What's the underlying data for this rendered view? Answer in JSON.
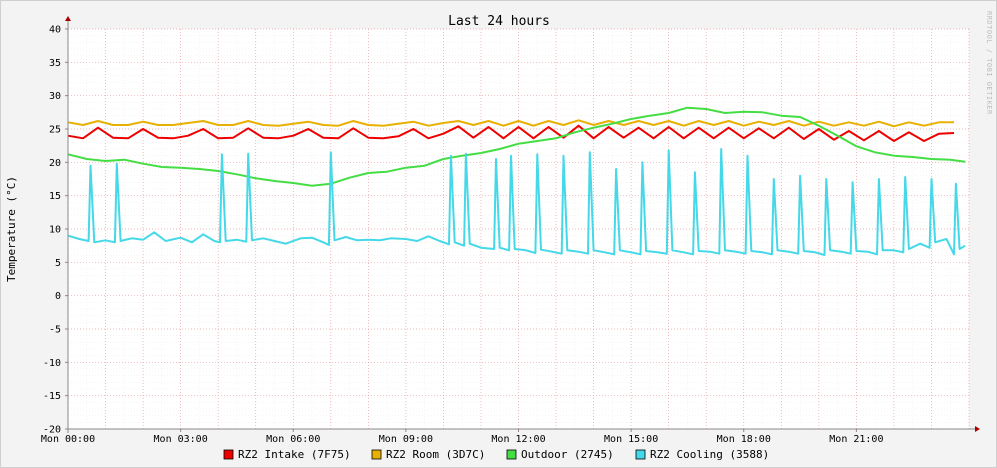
{
  "watermark": "RRDTOOL / TOBI OETIKER",
  "chart_data": {
    "type": "line",
    "title": "Last 24 hours",
    "xlabel": "",
    "ylabel": "Temperature (°C)",
    "xlim": [
      0,
      24
    ],
    "ylim": [
      -20,
      40
    ],
    "y_ticks": [
      40,
      35,
      30,
      25,
      20,
      15,
      10,
      5,
      0,
      -5,
      -10,
      -15,
      -20
    ],
    "x_ticks": [
      {
        "value": 0,
        "label": "Mon 00:00"
      },
      {
        "value": 3,
        "label": "Mon 03:00"
      },
      {
        "value": 6,
        "label": "Mon 06:00"
      },
      {
        "value": 9,
        "label": "Mon 09:00"
      },
      {
        "value": 12,
        "label": "Mon 12:00"
      },
      {
        "value": 15,
        "label": "Mon 15:00"
      },
      {
        "value": 18,
        "label": "Mon 18:00"
      },
      {
        "value": 21,
        "label": "Mon 21:00"
      }
    ],
    "grid": true,
    "legend_position": "bottom",
    "series": [
      {
        "name": "RZ2 Intake (7F75)",
        "color": "#ee0000",
        "x": [
          0,
          0.4,
          0.8,
          1.2,
          1.6,
          2.0,
          2.4,
          2.8,
          3.2,
          3.6,
          4.0,
          4.4,
          4.8,
          5.2,
          5.6,
          6.0,
          6.4,
          6.8,
          7.2,
          7.6,
          8.0,
          8.4,
          8.8,
          9.2,
          9.6,
          10.0,
          10.4,
          10.8,
          11.2,
          11.6,
          12.0,
          12.4,
          12.8,
          13.2,
          13.6,
          14.0,
          14.4,
          14.8,
          15.2,
          15.6,
          16.0,
          16.4,
          16.8,
          17.2,
          17.6,
          18.0,
          18.4,
          18.8,
          19.2,
          19.6,
          20.0,
          20.4,
          20.8,
          21.2,
          21.6,
          22.0,
          22.4,
          22.8,
          23.2,
          23.6
        ],
        "y": [
          24.0,
          23.6,
          25.2,
          23.7,
          23.6,
          25.0,
          23.7,
          23.6,
          24.0,
          25.0,
          23.6,
          23.7,
          25.1,
          23.7,
          23.6,
          24.0,
          25.0,
          23.7,
          23.6,
          25.1,
          23.7,
          23.6,
          23.9,
          25.0,
          23.6,
          24.3,
          25.4,
          23.7,
          25.3,
          23.6,
          25.3,
          23.6,
          25.3,
          23.7,
          25.5,
          23.6,
          25.3,
          23.7,
          25.2,
          23.6,
          25.3,
          23.6,
          25.2,
          23.6,
          25.2,
          23.6,
          25.1,
          23.6,
          25.2,
          23.5,
          25.0,
          23.4,
          24.7,
          23.3,
          24.7,
          23.2,
          24.5,
          23.2,
          24.3,
          24.4
        ]
      },
      {
        "name": "RZ2 Room (3D7C)",
        "color": "#e8b000",
        "x": [
          0,
          0.4,
          0.8,
          1.2,
          1.6,
          2.0,
          2.4,
          2.8,
          3.2,
          3.6,
          4.0,
          4.4,
          4.8,
          5.2,
          5.6,
          6.0,
          6.4,
          6.8,
          7.2,
          7.6,
          8.0,
          8.4,
          8.8,
          9.2,
          9.6,
          10.0,
          10.4,
          10.8,
          11.2,
          11.6,
          12.0,
          12.4,
          12.8,
          13.2,
          13.6,
          14.0,
          14.4,
          14.8,
          15.2,
          15.6,
          16.0,
          16.4,
          16.8,
          17.2,
          17.6,
          18.0,
          18.4,
          18.8,
          19.2,
          19.6,
          20.0,
          20.4,
          20.8,
          21.2,
          21.6,
          22.0,
          22.4,
          22.8,
          23.2,
          23.6
        ],
        "y": [
          26.0,
          25.6,
          26.2,
          25.6,
          25.6,
          26.1,
          25.6,
          25.6,
          25.9,
          26.2,
          25.6,
          25.6,
          26.2,
          25.6,
          25.5,
          25.8,
          26.1,
          25.6,
          25.5,
          26.2,
          25.6,
          25.5,
          25.8,
          26.1,
          25.5,
          25.9,
          26.2,
          25.6,
          26.2,
          25.5,
          26.2,
          25.5,
          26.2,
          25.6,
          26.3,
          25.6,
          26.2,
          25.6,
          26.2,
          25.6,
          26.2,
          25.5,
          26.2,
          25.6,
          26.2,
          25.5,
          26.1,
          25.6,
          26.2,
          25.5,
          26.1,
          25.5,
          26.0,
          25.5,
          26.1,
          25.4,
          26.0,
          25.5,
          26.0,
          26.0
        ]
      },
      {
        "name": "Outdoor (2745)",
        "color": "#44dd44",
        "x": [
          0,
          0.5,
          1.0,
          1.5,
          2.0,
          2.5,
          3.0,
          3.5,
          4.0,
          4.5,
          5.0,
          5.5,
          6.0,
          6.5,
          7.0,
          7.5,
          8.0,
          8.5,
          9.0,
          9.5,
          10.0,
          10.5,
          11.0,
          11.5,
          12.0,
          12.5,
          13.0,
          13.5,
          14.0,
          14.5,
          15.0,
          15.5,
          16.0,
          16.5,
          17.0,
          17.5,
          18.0,
          18.5,
          19.0,
          19.5,
          20.0,
          20.5,
          21.0,
          21.5,
          22.0,
          22.5,
          23.0,
          23.5,
          23.9
        ],
        "y": [
          21.2,
          20.5,
          20.2,
          20.4,
          19.8,
          19.3,
          19.2,
          19.0,
          18.7,
          18.2,
          17.6,
          17.2,
          16.9,
          16.5,
          16.8,
          17.7,
          18.4,
          18.6,
          19.2,
          19.5,
          20.5,
          21.0,
          21.4,
          22.0,
          22.8,
          23.2,
          23.6,
          24.5,
          25.2,
          25.8,
          26.5,
          27.0,
          27.4,
          28.2,
          28.0,
          27.4,
          27.6,
          27.5,
          27.0,
          26.8,
          25.5,
          24.0,
          22.4,
          21.5,
          21.0,
          20.8,
          20.5,
          20.4,
          20.1
        ]
      },
      {
        "name": "RZ2 Cooling (3588)",
        "color": "#44d8e8",
        "x": [
          0.0,
          0.3,
          0.55,
          0.6,
          0.7,
          1.0,
          1.25,
          1.3,
          1.4,
          1.7,
          2.0,
          2.3,
          2.6,
          3.0,
          3.3,
          3.6,
          3.9,
          4.05,
          4.1,
          4.2,
          4.5,
          4.75,
          4.8,
          4.9,
          5.2,
          5.5,
          5.8,
          6.2,
          6.5,
          6.8,
          6.95,
          7.0,
          7.1,
          7.4,
          7.7,
          8.0,
          8.3,
          8.6,
          9.0,
          9.3,
          9.6,
          9.9,
          10.15,
          10.2,
          10.3,
          10.55,
          10.6,
          10.7,
          11.0,
          11.35,
          11.4,
          11.5,
          11.75,
          11.8,
          11.9,
          12.2,
          12.45,
          12.5,
          12.6,
          12.9,
          13.15,
          13.2,
          13.3,
          13.6,
          13.85,
          13.9,
          14.0,
          14.3,
          14.55,
          14.6,
          14.7,
          15.0,
          15.25,
          15.3,
          15.4,
          15.7,
          15.95,
          16.0,
          16.1,
          16.4,
          16.65,
          16.7,
          16.8,
          17.1,
          17.35,
          17.4,
          17.5,
          17.8,
          18.05,
          18.1,
          18.2,
          18.5,
          18.75,
          18.8,
          18.9,
          19.2,
          19.45,
          19.5,
          19.6,
          19.9,
          20.15,
          20.2,
          20.3,
          20.6,
          20.85,
          20.9,
          21.0,
          21.3,
          21.55,
          21.6,
          21.7,
          22.0,
          22.25,
          22.3,
          22.4,
          22.7,
          22.95,
          23.0,
          23.1,
          23.4,
          23.6,
          23.65,
          23.75,
          23.9
        ],
        "y": [
          9.0,
          8.5,
          8.2,
          19.5,
          8.0,
          8.3,
          8.0,
          19.8,
          8.2,
          8.6,
          8.4,
          9.5,
          8.2,
          8.7,
          8.0,
          9.2,
          8.2,
          8.0,
          21.2,
          8.2,
          8.4,
          8.1,
          21.3,
          8.3,
          8.6,
          8.2,
          7.8,
          8.6,
          8.7,
          8.0,
          7.6,
          21.5,
          8.3,
          8.8,
          8.3,
          8.4,
          8.3,
          8.6,
          8.5,
          8.2,
          8.9,
          8.2,
          7.7,
          21.0,
          8.0,
          7.5,
          21.3,
          7.8,
          7.2,
          7.0,
          20.5,
          7.2,
          6.8,
          21.0,
          7.0,
          6.8,
          6.4,
          21.2,
          6.9,
          6.6,
          6.3,
          21.0,
          6.8,
          6.6,
          6.3,
          21.5,
          6.8,
          6.5,
          6.2,
          19.0,
          6.8,
          6.5,
          6.2,
          20.0,
          6.7,
          6.5,
          6.3,
          21.8,
          6.8,
          6.5,
          6.2,
          18.5,
          6.7,
          6.6,
          6.3,
          22.0,
          6.8,
          6.6,
          6.3,
          21.0,
          6.7,
          6.5,
          6.2,
          17.5,
          6.8,
          6.6,
          6.3,
          18.0,
          6.7,
          6.5,
          6.1,
          17.5,
          6.8,
          6.6,
          6.3,
          17.0,
          6.7,
          6.6,
          6.2,
          17.5,
          6.8,
          6.8,
          6.5,
          17.8,
          7.0,
          7.8,
          7.2,
          17.5,
          8.0,
          8.5,
          6.2,
          16.8,
          7.0,
          7.5
        ]
      }
    ]
  }
}
